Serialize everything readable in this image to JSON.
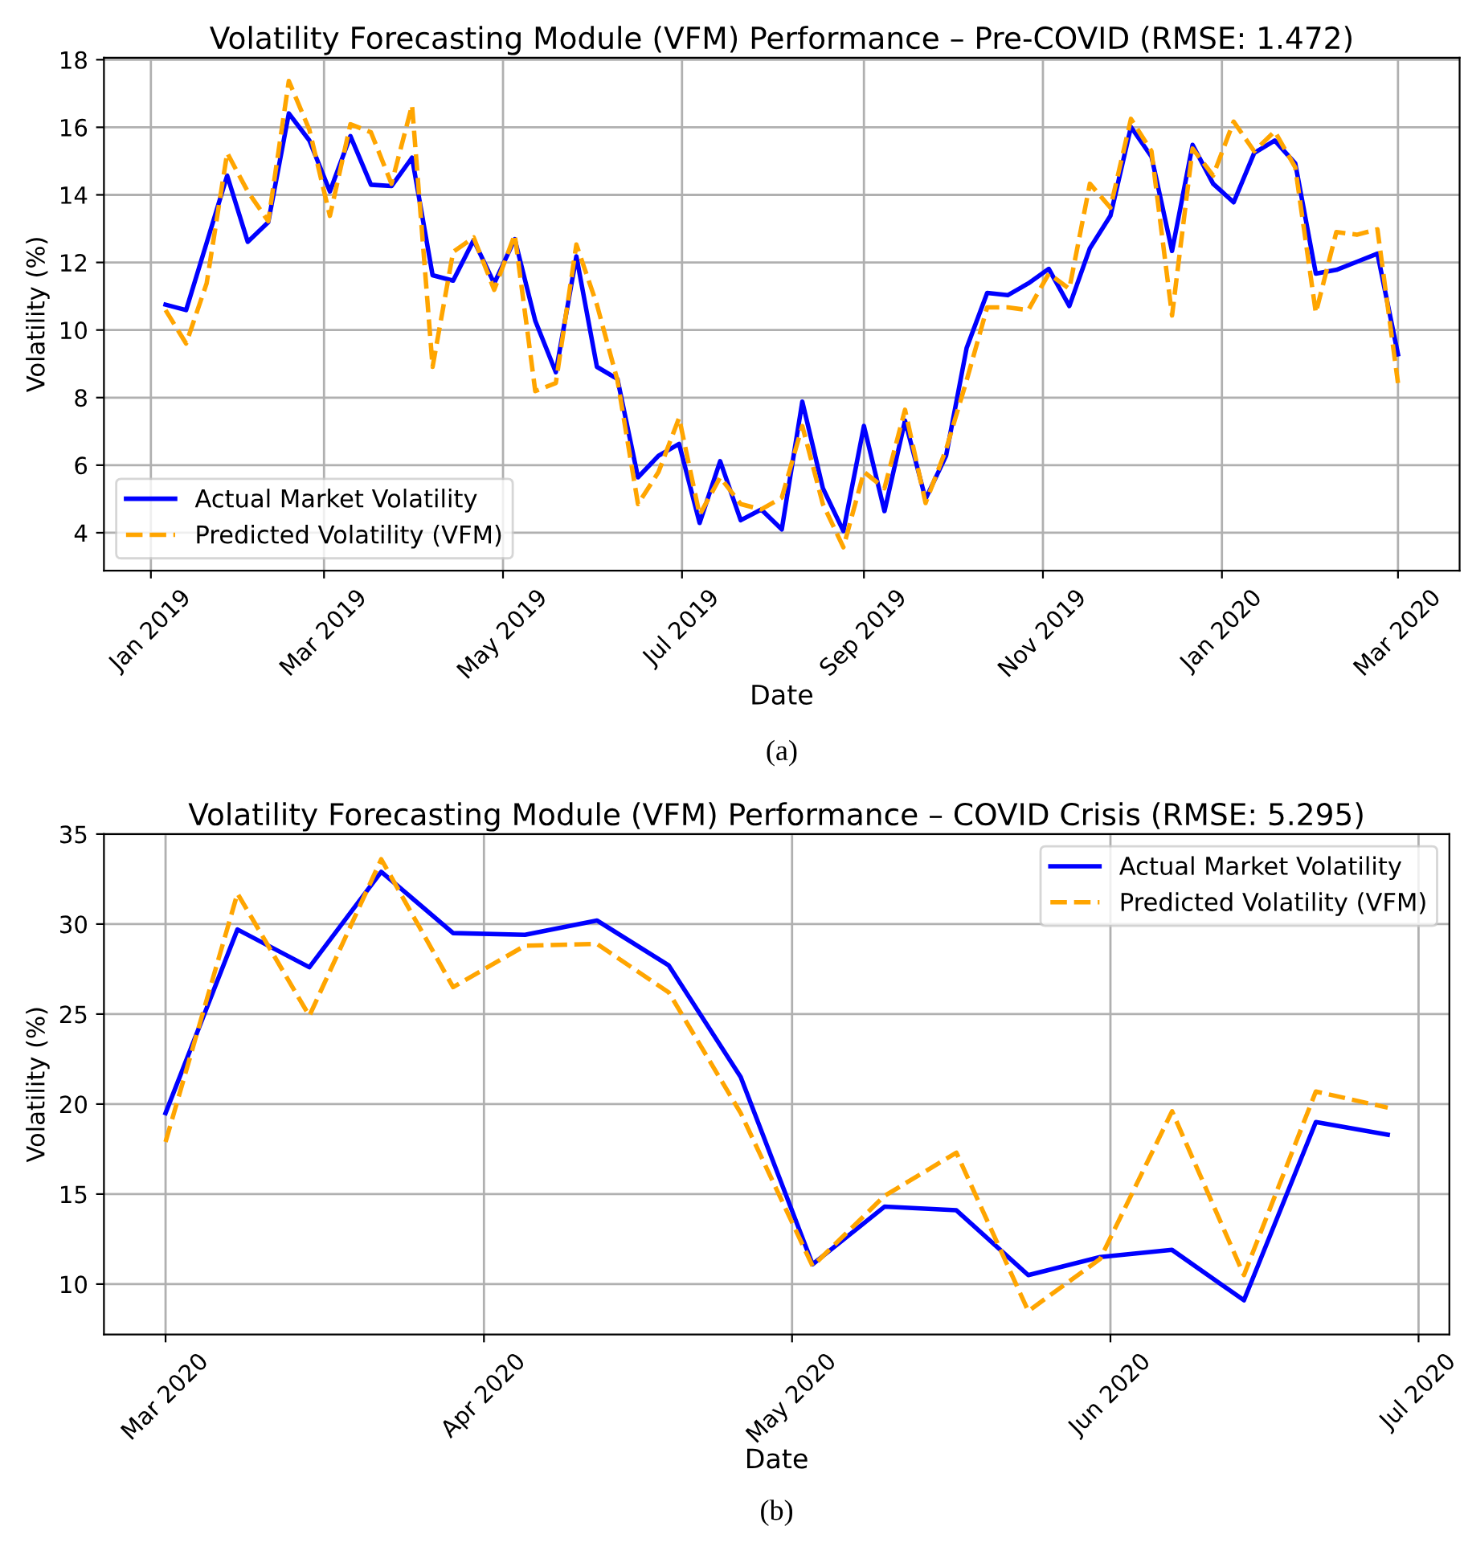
{
  "chart_data": [
    {
      "type": "line",
      "title": "Volatility Forecasting Module (VFM) Performance – Pre-COVID (RMSE: 1.472)",
      "xlabel": "Date",
      "ylabel": "Volatility (%)",
      "annotations": [
        "(a)"
      ],
      "legend": "bottom left",
      "grid": true,
      "x": [
        "2019-01-06",
        "2019-01-13",
        "2019-01-20",
        "2019-01-27",
        "2019-02-03",
        "2019-02-10",
        "2019-02-17",
        "2019-02-24",
        "2019-03-03",
        "2019-03-10",
        "2019-03-17",
        "2019-03-24",
        "2019-03-31",
        "2019-04-07",
        "2019-04-14",
        "2019-04-21",
        "2019-04-28",
        "2019-05-05",
        "2019-05-12",
        "2019-05-19",
        "2019-05-26",
        "2019-06-02",
        "2019-06-09",
        "2019-06-16",
        "2019-06-23",
        "2019-06-30",
        "2019-07-07",
        "2019-07-14",
        "2019-07-21",
        "2019-07-28",
        "2019-08-04",
        "2019-08-11",
        "2019-08-18",
        "2019-08-25",
        "2019-09-01",
        "2019-09-08",
        "2019-09-15",
        "2019-09-22",
        "2019-09-29",
        "2019-10-06",
        "2019-10-13",
        "2019-10-20",
        "2019-10-27",
        "2019-11-03",
        "2019-11-10",
        "2019-11-17",
        "2019-11-24",
        "2019-12-01",
        "2019-12-08",
        "2019-12-15",
        "2019-12-22",
        "2019-12-29",
        "2020-01-05",
        "2020-01-12",
        "2020-01-19",
        "2020-01-26",
        "2020-02-02",
        "2020-02-09",
        "2020-02-16",
        "2020-02-23",
        "2020-03-01"
      ],
      "series": [
        {
          "name": "Actual Market Volatility",
          "color": "#0000ff",
          "line_style": "solid",
          "values": [
            10.75,
            10.59,
            12.58,
            14.57,
            12.61,
            13.19,
            16.41,
            15.61,
            14.1,
            15.74,
            14.3,
            14.26,
            15.1,
            11.62,
            11.46,
            12.66,
            11.38,
            12.69,
            10.27,
            8.75,
            12.18,
            8.91,
            8.55,
            5.64,
            6.28,
            6.63,
            4.29,
            6.12,
            4.37,
            4.69,
            4.1,
            7.88,
            5.32,
            4.05,
            7.16,
            4.64,
            7.32,
            5.0,
            6.28,
            9.47,
            11.1,
            11.03,
            11.38,
            11.81,
            10.71,
            12.42,
            13.38,
            16.01,
            15.13,
            12.34,
            15.48,
            14.33,
            13.78,
            15.24,
            15.61,
            14.93,
            11.67,
            11.78,
            12.02,
            12.26,
            9.28
          ]
        },
        {
          "name": "Predicted Volatility (VFM)",
          "color": "#ffa500",
          "line_style": "dashed",
          "values": [
            10.59,
            9.6,
            11.38,
            15.24,
            14.1,
            13.22,
            17.37,
            15.93,
            13.38,
            16.09,
            15.85,
            14.33,
            16.65,
            8.91,
            12.31,
            12.74,
            11.19,
            12.82,
            8.19,
            8.43,
            12.53,
            10.75,
            8.51,
            4.85,
            5.8,
            7.4,
            4.53,
            5.64,
            4.85,
            4.69,
            5.04,
            7.16,
            4.85,
            3.57,
            5.8,
            5.32,
            7.64,
            4.88,
            6.47,
            8.51,
            10.67,
            10.67,
            10.59,
            11.67,
            11.22,
            14.33,
            13.62,
            16.25,
            15.29,
            10.43,
            15.37,
            14.57,
            16.17,
            15.29,
            15.88,
            14.81,
            10.51,
            12.9,
            12.82,
            12.98,
            8.43
          ]
        }
      ],
      "xlim": [
        "2018-12-16",
        "2020-03-22"
      ],
      "ylim": [
        2.88,
        18.06
      ],
      "xticks": [
        {
          "value": "2019-01-01",
          "label": "Jan 2019"
        },
        {
          "value": "2019-03-01",
          "label": "Mar 2019"
        },
        {
          "value": "2019-05-01",
          "label": "May 2019"
        },
        {
          "value": "2019-07-01",
          "label": "Jul 2019"
        },
        {
          "value": "2019-09-01",
          "label": "Sep 2019"
        },
        {
          "value": "2019-11-01",
          "label": "Nov 2019"
        },
        {
          "value": "2020-01-01",
          "label": "Jan 2020"
        },
        {
          "value": "2020-03-01",
          "label": "Mar 2020"
        }
      ],
      "yticks": [
        4,
        6,
        8,
        10,
        12,
        14,
        16,
        18
      ]
    },
    {
      "type": "line",
      "title": "Volatility Forecasting Module (VFM) Performance – COVID Crisis (RMSE: 5.295)",
      "xlabel": "Date",
      "ylabel": "Volatility (%)",
      "annotations": [
        "(b)"
      ],
      "legend": "top right",
      "grid": true,
      "x": [
        "2020-03-01",
        "2020-03-08",
        "2020-03-15",
        "2020-03-22",
        "2020-03-29",
        "2020-04-05",
        "2020-04-12",
        "2020-04-19",
        "2020-04-26",
        "2020-05-03",
        "2020-05-10",
        "2020-05-17",
        "2020-05-24",
        "2020-05-31",
        "2020-06-07",
        "2020-06-14",
        "2020-06-21",
        "2020-06-28"
      ],
      "series": [
        {
          "name": "Actual Market Volatility",
          "color": "#0000ff",
          "line_style": "solid",
          "values": [
            19.5,
            29.7,
            27.6,
            32.9,
            29.5,
            29.4,
            30.2,
            27.7,
            21.5,
            11.1,
            14.3,
            14.1,
            10.5,
            11.5,
            11.9,
            9.1,
            19.0,
            18.3
          ]
        },
        {
          "name": "Predicted Volatility (VFM)",
          "color": "#ffa500",
          "line_style": "dashed",
          "values": [
            17.9,
            31.7,
            24.9,
            33.6,
            26.5,
            28.8,
            28.9,
            26.2,
            19.5,
            11.0,
            14.9,
            17.3,
            8.5,
            11.4,
            19.6,
            10.5,
            20.7,
            19.8
          ]
        }
      ],
      "xlim": [
        "2020-02-24",
        "2020-07-04"
      ],
      "ylim": [
        7.2,
        35.0
      ],
      "xticks": [
        {
          "value": "2020-03-01",
          "label": "Mar 2020"
        },
        {
          "value": "2020-04-01",
          "label": "Apr 2020"
        },
        {
          "value": "2020-05-01",
          "label": "May 2020"
        },
        {
          "value": "2020-06-01",
          "label": "Jun 2020"
        },
        {
          "value": "2020-07-01",
          "label": "Jul 2020"
        }
      ],
      "yticks": [
        10,
        15,
        20,
        25,
        30,
        35
      ]
    }
  ]
}
